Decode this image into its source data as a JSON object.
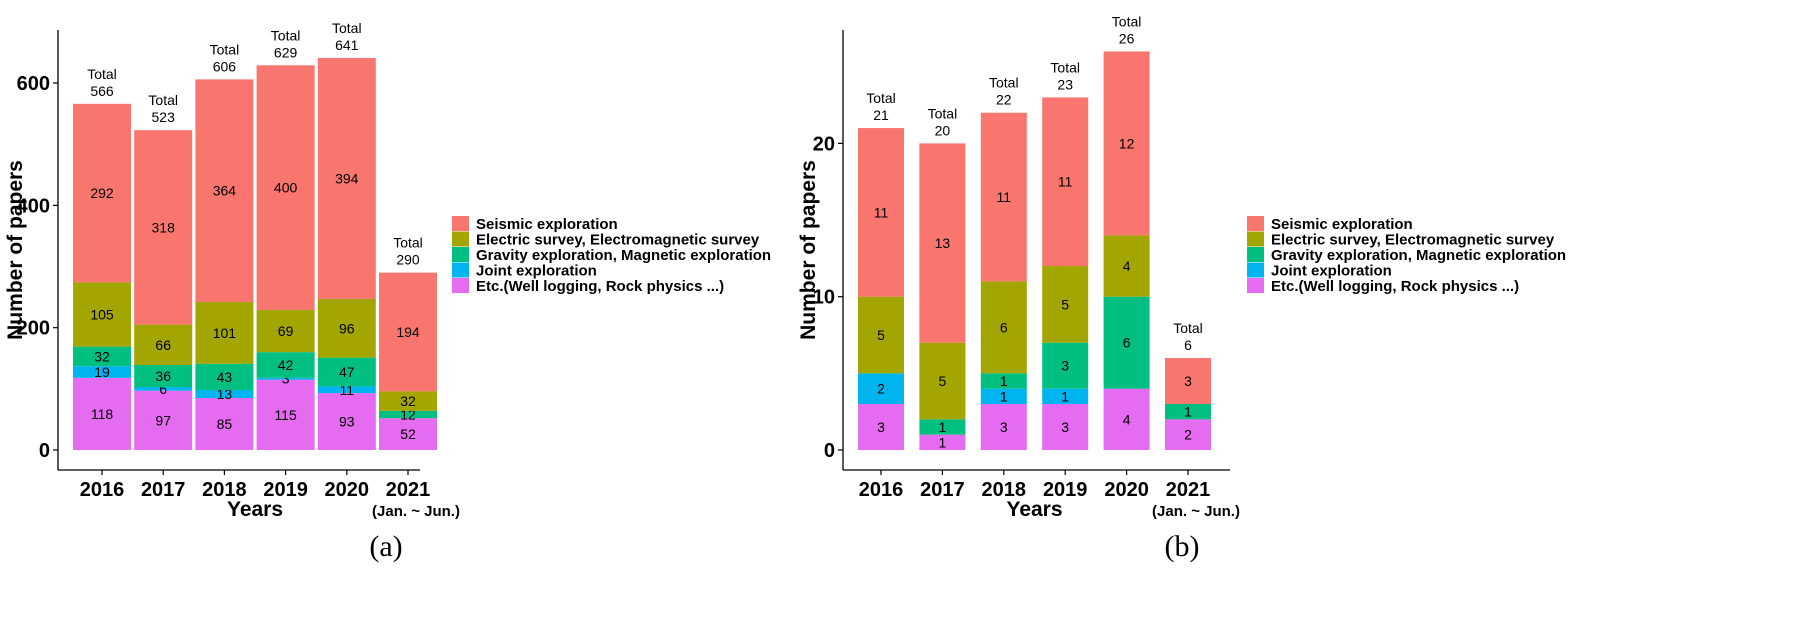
{
  "chart_data": [
    {
      "type": "bar",
      "stacked": true,
      "panel_label": "(a)",
      "xlabel": "Years",
      "ylabel": "Number of papers",
      "ylim": [
        0,
        680
      ],
      "yticks": [
        "0",
        "200",
        "400",
        "600"
      ],
      "categories": [
        "2016",
        "2017",
        "2018",
        "2019",
        "2020",
        "2021"
      ],
      "category_sublabels": [
        "",
        "",
        "",
        "",
        "",
        "(Jan. ~ Jun.)"
      ],
      "total_prefix": "Total",
      "totals": [
        "566",
        "523",
        "606",
        "629",
        "641",
        "290"
      ],
      "series": [
        {
          "name": "Etc.(Well logging, Rock physics ...)",
          "color": "#E56BF0",
          "values": [
            118,
            97,
            85,
            115,
            93,
            52
          ]
        },
        {
          "name": "Joint exploration",
          "color": "#00B4EF",
          "values": [
            19,
            6,
            13,
            3,
            11,
            0
          ]
        },
        {
          "name": "Gravity exploration, Magnetic exploration",
          "color": "#00BF80",
          "values": [
            32,
            36,
            43,
            42,
            47,
            12
          ]
        },
        {
          "name": "Electric survey, Electromagnetic survey",
          "color": "#A3A500",
          "values": [
            105,
            66,
            101,
            69,
            96,
            32
          ]
        },
        {
          "name": "Seismic exploration",
          "color": "#F8766D",
          "values": [
            292,
            318,
            364,
            400,
            394,
            194
          ]
        }
      ],
      "legend_position": "right"
    },
    {
      "type": "bar",
      "stacked": true,
      "panel_label": "(b)",
      "xlabel": "Years",
      "ylabel": "Number of papers",
      "ylim": [
        0,
        28
      ],
      "yticks": [
        "0",
        "10",
        "20"
      ],
      "categories": [
        "2016",
        "2017",
        "2018",
        "2019",
        "2020",
        "2021"
      ],
      "category_sublabels": [
        "",
        "",
        "",
        "",
        "",
        "(Jan. ~ Jun.)"
      ],
      "total_prefix": "Total",
      "totals": [
        "21",
        "20",
        "22",
        "23",
        "26",
        "6"
      ],
      "series": [
        {
          "name": "Etc.(Well logging, Rock physics ...)",
          "color": "#E56BF0",
          "values": [
            3,
            1,
            3,
            3,
            4,
            2
          ]
        },
        {
          "name": "Joint exploration",
          "color": "#00B4EF",
          "values": [
            2,
            0,
            1,
            1,
            0,
            0
          ]
        },
        {
          "name": "Gravity exploration, Magnetic exploration",
          "color": "#00BF80",
          "values": [
            0,
            1,
            1,
            3,
            6,
            1
          ]
        },
        {
          "name": "Electric survey, Electromagnetic survey",
          "color": "#A3A500",
          "values": [
            5,
            5,
            6,
            5,
            4,
            0
          ]
        },
        {
          "name": "Seismic exploration",
          "color": "#F8766D",
          "values": [
            11,
            13,
            11,
            11,
            12,
            3
          ]
        }
      ],
      "legend_position": "right"
    }
  ],
  "legend_order": [
    "Seismic exploration",
    "Electric survey, Electromagnetic survey",
    "Gravity exploration, Magnetic exploration",
    "Joint exploration",
    "Etc.(Well logging, Rock physics ...)"
  ]
}
